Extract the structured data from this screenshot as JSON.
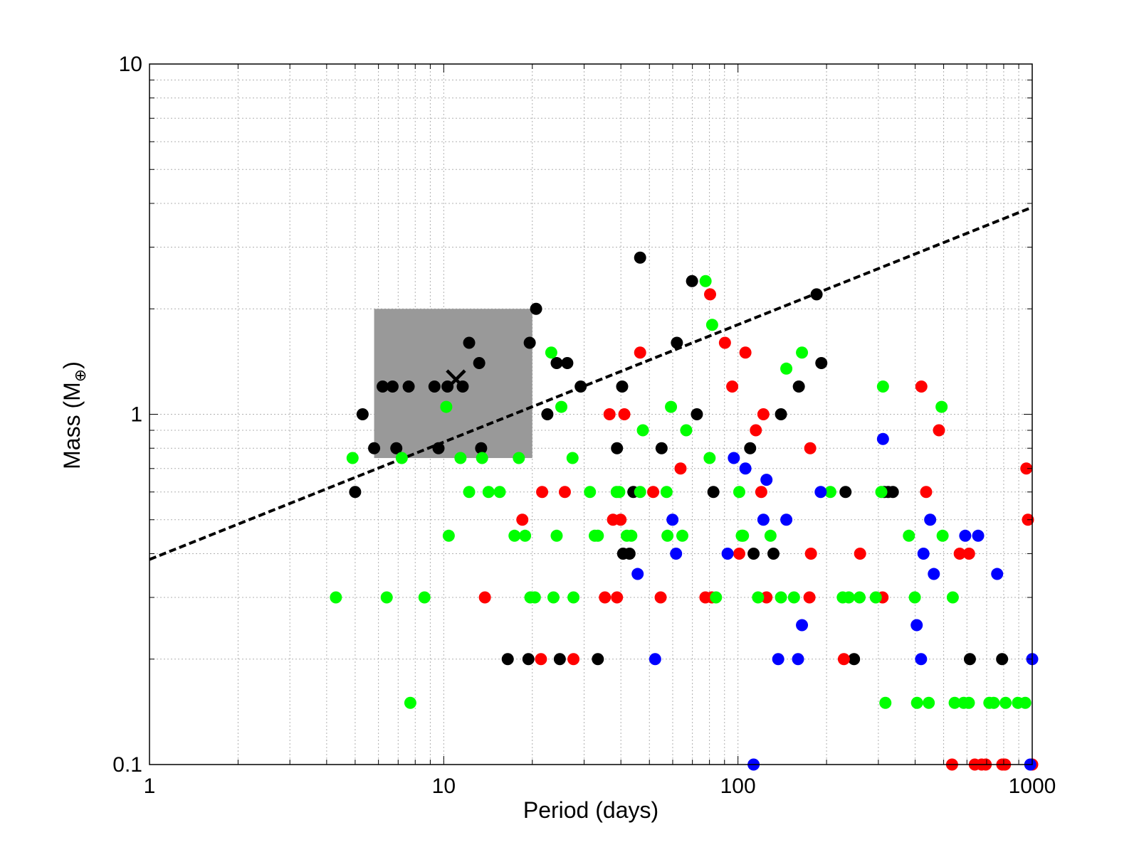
{
  "chart_data": {
    "type": "scatter",
    "title": "",
    "xlabel": "Period (days)",
    "ylabel_main": "Mass (M",
    "ylabel_sub": "⊕",
    "ylabel_close": ")",
    "xscale": "log",
    "yscale": "log",
    "xlim": [
      1,
      1000
    ],
    "ylim": [
      0.1,
      10
    ],
    "grid": true,
    "x_tick_labels": [
      {
        "value": 1,
        "label": "1"
      },
      {
        "value": 10,
        "label": "10"
      },
      {
        "value": 100,
        "label": "100"
      },
      {
        "value": 1000,
        "label": "1000"
      }
    ],
    "y_tick_labels": [
      {
        "value": 0.1,
        "label": "0.1"
      },
      {
        "value": 1,
        "label": "1"
      },
      {
        "value": 10,
        "label": "10"
      }
    ],
    "colors": {
      "black": "#000000",
      "red": "#ff0000",
      "green": "#00ff00",
      "blue": "#0000ff",
      "box": "#999999",
      "grid": "#b0b0b0"
    },
    "shaded_region": {
      "x": [
        5.8,
        20
      ],
      "y": [
        0.75,
        2.0
      ]
    },
    "marker": {
      "symbol": "×",
      "x": 11,
      "y": 1.25
    },
    "trend_line": {
      "x": [
        1,
        1000
      ],
      "y": [
        0.385,
        3.9
      ],
      "style": "dashed"
    },
    "series": [
      {
        "color": "black",
        "points": [
          [
            5,
            0.6
          ],
          [
            5.3,
            1.0
          ],
          [
            5.8,
            0.8
          ],
          [
            6.2,
            1.2
          ],
          [
            6.7,
            1.2
          ],
          [
            6.9,
            0.8
          ],
          [
            7.6,
            1.2
          ],
          [
            9.3,
            1.2
          ],
          [
            9.6,
            0.8
          ],
          [
            10.3,
            1.2
          ],
          [
            11.6,
            1.2
          ],
          [
            12.2,
            1.6
          ],
          [
            13.2,
            1.4
          ],
          [
            13.4,
            0.8
          ],
          [
            16.5,
            0.2
          ],
          [
            19.4,
            0.2
          ],
          [
            19.6,
            1.6
          ],
          [
            20.6,
            2.0
          ],
          [
            22.5,
            1.0
          ],
          [
            24.2,
            1.4
          ],
          [
            24.8,
            0.2
          ],
          [
            26.3,
            1.4
          ],
          [
            29.2,
            1.2
          ],
          [
            33.4,
            0.2
          ],
          [
            38.8,
            0.8
          ],
          [
            40.4,
            1.2
          ],
          [
            40.7,
            0.4
          ],
          [
            42.8,
            0.4
          ],
          [
            44.1,
            0.6
          ],
          [
            46.5,
            2.8
          ],
          [
            55,
            0.8
          ],
          [
            62,
            1.6
          ],
          [
            69.8,
            2.4
          ],
          [
            72.5,
            1.0
          ],
          [
            82.5,
            0.6
          ],
          [
            110,
            0.8
          ],
          [
            113,
            0.4
          ],
          [
            132,
            0.4
          ],
          [
            140,
            1.0
          ],
          [
            161,
            1.2
          ],
          [
            185,
            2.2
          ],
          [
            192,
            1.4
          ],
          [
            232,
            0.6
          ],
          [
            248,
            0.2
          ],
          [
            314,
            0.6
          ],
          [
            324,
            0.6
          ],
          [
            336,
            0.6
          ],
          [
            614,
            0.2
          ],
          [
            790,
            0.2
          ]
        ]
      },
      {
        "color": "red",
        "points": [
          [
            13.8,
            0.3
          ],
          [
            18.5,
            0.5
          ],
          [
            21.4,
            0.2
          ],
          [
            21.6,
            0.6
          ],
          [
            25.8,
            0.6
          ],
          [
            27.6,
            0.2
          ],
          [
            35.3,
            0.3
          ],
          [
            36.6,
            1.0
          ],
          [
            37.6,
            0.5
          ],
          [
            38.8,
            0.3
          ],
          [
            39.9,
            0.5
          ],
          [
            41.1,
            1.0
          ],
          [
            46.5,
            1.5
          ],
          [
            51.5,
            0.6
          ],
          [
            54.6,
            0.3
          ],
          [
            63.8,
            0.7
          ],
          [
            77.5,
            0.3
          ],
          [
            80.4,
            2.2
          ],
          [
            81.5,
            0.3
          ],
          [
            90.3,
            1.6
          ],
          [
            95.6,
            1.2
          ],
          [
            101,
            0.4
          ],
          [
            106,
            1.5
          ],
          [
            115,
            0.9
          ],
          [
            120,
            0.6
          ],
          [
            122,
            1.0
          ],
          [
            125,
            0.3
          ],
          [
            175,
            0.3
          ],
          [
            176,
            0.8
          ],
          [
            177,
            0.4
          ],
          [
            229,
            0.2
          ],
          [
            260,
            0.4
          ],
          [
            310,
            0.3
          ],
          [
            420,
            1.2
          ],
          [
            436,
            0.6
          ],
          [
            482,
            0.9
          ],
          [
            534,
            0.1
          ],
          [
            567,
            0.4
          ],
          [
            610,
            0.4
          ],
          [
            638,
            0.1
          ],
          [
            673,
            0.1
          ],
          [
            695,
            0.1
          ],
          [
            791,
            0.1
          ],
          [
            808,
            0.1
          ],
          [
            955,
            0.7
          ],
          [
            967,
            0.5
          ],
          [
            1000,
            0.1
          ]
        ]
      },
      {
        "color": "green",
        "points": [
          [
            4.3,
            0.3
          ],
          [
            4.9,
            0.75
          ],
          [
            6.4,
            0.3
          ],
          [
            7.2,
            0.75
          ],
          [
            7.7,
            0.15
          ],
          [
            8.6,
            0.3
          ],
          [
            10.2,
            1.05
          ],
          [
            10.4,
            0.45
          ],
          [
            11.4,
            0.75
          ],
          [
            12.2,
            0.6
          ],
          [
            13.5,
            0.75
          ],
          [
            14.2,
            0.6
          ],
          [
            15.5,
            0.6
          ],
          [
            17.4,
            0.45
          ],
          [
            18,
            0.75
          ],
          [
            18.9,
            0.45
          ],
          [
            19.7,
            0.3
          ],
          [
            20.4,
            0.3
          ],
          [
            23.2,
            1.5
          ],
          [
            23.6,
            0.3
          ],
          [
            24.2,
            0.45
          ],
          [
            25.1,
            1.05
          ],
          [
            27.4,
            0.75
          ],
          [
            27.6,
            0.3
          ],
          [
            31.4,
            0.6
          ],
          [
            32.6,
            0.45
          ],
          [
            33.4,
            0.45
          ],
          [
            38.7,
            0.6
          ],
          [
            39.5,
            0.6
          ],
          [
            41.9,
            0.45
          ],
          [
            43.4,
            0.45
          ],
          [
            46.5,
            0.6
          ],
          [
            47.5,
            0.9
          ],
          [
            57.2,
            0.6
          ],
          [
            57.6,
            0.45
          ],
          [
            59.2,
            1.05
          ],
          [
            64.7,
            0.45
          ],
          [
            66.7,
            0.9
          ],
          [
            77.6,
            2.4
          ],
          [
            80.1,
            0.75
          ],
          [
            81.7,
            1.8
          ],
          [
            84.2,
            0.3
          ],
          [
            101,
            0.6
          ],
          [
            103,
            0.45
          ],
          [
            104,
            0.45
          ],
          [
            117,
            0.3
          ],
          [
            129,
            0.45
          ],
          [
            140,
            0.3
          ],
          [
            146,
            1.35
          ],
          [
            155,
            0.3
          ],
          [
            165,
            1.5
          ],
          [
            206,
            0.6
          ],
          [
            227,
            0.3
          ],
          [
            238,
            0.3
          ],
          [
            259,
            0.3
          ],
          [
            294,
            0.3
          ],
          [
            307,
            0.6
          ],
          [
            311,
            1.2
          ],
          [
            317,
            0.15
          ],
          [
            381,
            0.45
          ],
          [
            399,
            0.3
          ],
          [
            406,
            0.15
          ],
          [
            445,
            0.15
          ],
          [
            492,
            1.05
          ],
          [
            496,
            0.45
          ],
          [
            537,
            0.3
          ],
          [
            545,
            0.15
          ],
          [
            585,
            0.15
          ],
          [
            609,
            0.15
          ],
          [
            715,
            0.15
          ],
          [
            740,
            0.15
          ],
          [
            812,
            0.15
          ],
          [
            894,
            0.15
          ],
          [
            947,
            0.15
          ]
        ]
      },
      {
        "color": "blue",
        "points": [
          [
            45.6,
            0.35
          ],
          [
            52.3,
            0.2
          ],
          [
            59.9,
            0.5
          ],
          [
            61.6,
            0.4
          ],
          [
            92.2,
            0.4
          ],
          [
            96.8,
            0.75
          ],
          [
            106,
            0.7
          ],
          [
            113,
            0.1
          ],
          [
            122,
            0.5
          ],
          [
            125,
            0.65
          ],
          [
            137,
            0.2
          ],
          [
            146,
            0.5
          ],
          [
            160,
            0.2
          ],
          [
            165,
            0.25
          ],
          [
            191,
            0.6
          ],
          [
            311,
            0.85
          ],
          [
            405,
            0.25
          ],
          [
            419,
            0.2
          ],
          [
            427,
            0.4
          ],
          [
            450,
            0.5
          ],
          [
            463,
            0.35
          ],
          [
            592,
            0.45
          ],
          [
            655,
            0.45
          ],
          [
            760,
            0.35
          ],
          [
            985,
            0.1
          ],
          [
            1000,
            0.2
          ]
        ]
      }
    ]
  }
}
